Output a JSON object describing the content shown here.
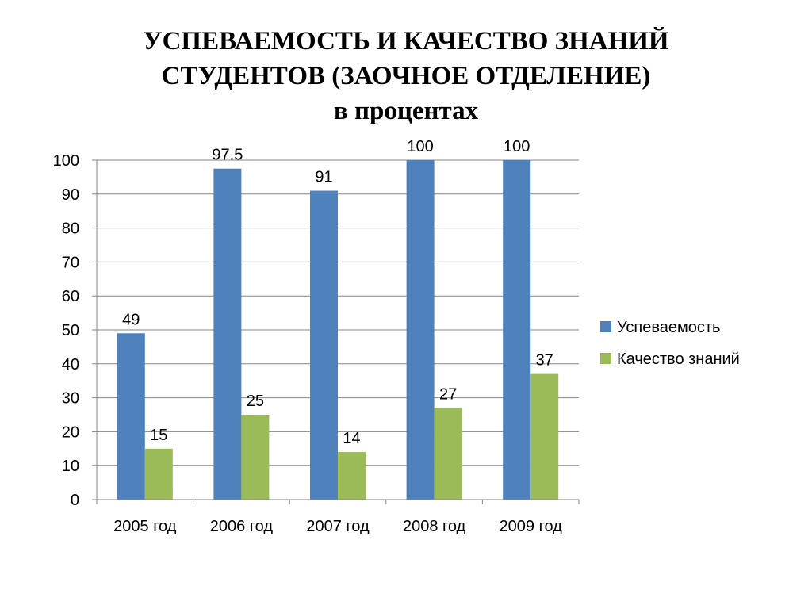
{
  "title_lines": [
    "УСПЕВАЕМОСТЬ И КАЧЕСТВО ЗНАНИЙ",
    "СТУДЕНТОВ (ЗАОЧНОЕ ОТДЕЛЕНИЕ)",
    "в процентах"
  ],
  "chart_data": {
    "type": "bar",
    "title": "УСПЕВАЕМОСТЬ И КАЧЕСТВО ЗНАНИЙ СТУДЕНТОВ (ЗАОЧНОЕ ОТДЕЛЕНИЕ) в процентах",
    "categories": [
      "2005 год",
      "2006 год",
      "2007 год",
      "2008 год",
      "2009 год"
    ],
    "series": [
      {
        "name": "Успеваемость",
        "values": [
          49,
          97.5,
          91,
          100,
          100
        ],
        "labels": [
          "49",
          "97.5",
          "91",
          "100",
          "100"
        ],
        "color": "#4f81bd"
      },
      {
        "name": "Качество знаний",
        "values": [
          15,
          25,
          14,
          27,
          37
        ],
        "labels": [
          "15",
          "25",
          "14",
          "27",
          "37"
        ],
        "color": "#9bbb59"
      }
    ],
    "ylim": [
      0,
      100
    ],
    "yticks": [
      "0",
      "10",
      "20",
      "30",
      "40",
      "50",
      "60",
      "70",
      "80",
      "90",
      "100"
    ],
    "grid": true,
    "legend_position": "right",
    "gridline_color": "#868686"
  }
}
